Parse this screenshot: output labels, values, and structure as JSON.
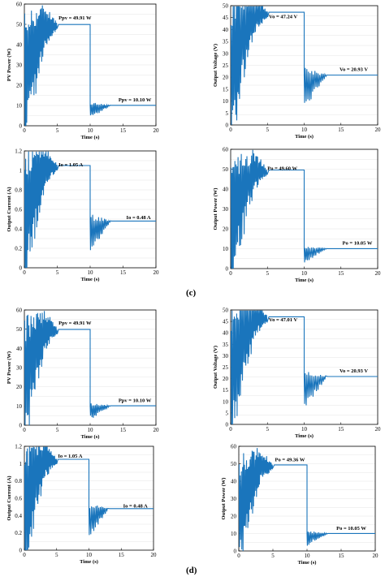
{
  "panel_labels": {
    "c": "(c)",
    "d": "(d)"
  },
  "chart_data": [
    {
      "type": "line",
      "group": "c",
      "color": "#1a75bc",
      "xlabel": "Time (s)",
      "ylabel": "PV Power (W)",
      "xlim": [
        0,
        20
      ],
      "ylim": [
        0,
        60
      ],
      "xticks": [
        0,
        5,
        10,
        15,
        20
      ],
      "yticks": [
        0,
        10,
        20,
        30,
        40,
        50,
        60
      ],
      "ss1": 49.91,
      "ss2": 10.1,
      "annotations": [
        {
          "text": "Ppv = 49.91 W",
          "x": 5.2,
          "y": 52.5
        },
        {
          "text": "Ppv = 10.10 W",
          "x": 14.3,
          "y": 12
        }
      ]
    },
    {
      "type": "line",
      "group": "c",
      "color": "#1a75bc",
      "xlabel": "Time (s)",
      "ylabel": "Output Voltage (V)",
      "xlim": [
        0,
        20
      ],
      "ylim": [
        0,
        50
      ],
      "xticks": [
        0,
        5,
        10,
        15,
        20
      ],
      "yticks": [
        0,
        5,
        10,
        15,
        20,
        25,
        30,
        35,
        40,
        45,
        50
      ],
      "ss1": 47.24,
      "ss2": 20.93,
      "annotations": [
        {
          "text": "Vo = 47.24 V",
          "x": 5.2,
          "y": 44.8
        },
        {
          "text": "Vo = 20.93 V",
          "x": 14.8,
          "y": 22.7
        }
      ]
    },
    {
      "type": "line",
      "group": "c",
      "color": "#1a75bc",
      "xlabel": "Time (s)",
      "ylabel": "Output Current (A)",
      "xlim": [
        0,
        20
      ],
      "ylim": [
        0,
        1.2
      ],
      "xticks": [
        0,
        5,
        10,
        15,
        20
      ],
      "yticks": [
        "0",
        "0.2",
        "0.4",
        "0.6",
        "0.8",
        "1",
        "1.2"
      ],
      "ss1": 1.05,
      "ss2": 0.48,
      "annotations": [
        {
          "text": "Io = 1.05 A",
          "x": 5.2,
          "y": 1.04
        },
        {
          "text": "Io = 0.48 A",
          "x": 15.5,
          "y": 0.5
        }
      ]
    },
    {
      "type": "line",
      "group": "c",
      "color": "#1a75bc",
      "xlabel": "Time (s)",
      "ylabel": "Output Power (W)",
      "xlim": [
        0,
        20
      ],
      "ylim": [
        0,
        60
      ],
      "xticks": [
        0,
        5,
        10,
        15,
        20
      ],
      "yticks": [
        0,
        10,
        20,
        30,
        40,
        50,
        60
      ],
      "ss1": 49.6,
      "ss2": 10.05,
      "annotations": [
        {
          "text": "Po = 49.60 W",
          "x": 5.0,
          "y": 49.5
        },
        {
          "text": "Po = 10.05 W",
          "x": 15.2,
          "y": 12
        }
      ]
    },
    {
      "type": "line",
      "group": "d",
      "color": "#1a75bc",
      "xlabel": "Time (s)",
      "ylabel": "PV Power (W)",
      "xlim": [
        0,
        20
      ],
      "ylim": [
        0,
        60
      ],
      "xticks": [
        0,
        5,
        10,
        15,
        20
      ],
      "yticks": [
        0,
        10,
        20,
        30,
        40,
        50,
        60
      ],
      "ss1": 49.91,
      "ss2": 10.1,
      "annotations": [
        {
          "text": "Ppv = 49.91 W",
          "x": 5.2,
          "y": 52.5
        },
        {
          "text": "Ppv = 10.10 W",
          "x": 14.3,
          "y": 12
        }
      ]
    },
    {
      "type": "line",
      "group": "d",
      "color": "#1a75bc",
      "xlabel": "Time (s)",
      "ylabel": "Output Voltage (V)",
      "xlim": [
        0,
        20
      ],
      "ylim": [
        0,
        50
      ],
      "xticks": [
        0,
        5,
        10,
        15,
        20
      ],
      "yticks": [
        0,
        5,
        10,
        15,
        20,
        25,
        30,
        35,
        40,
        45,
        50
      ],
      "ss1": 47.01,
      "ss2": 20.93,
      "annotations": [
        {
          "text": "Vo = 47.01 V",
          "x": 5.2,
          "y": 45.0
        },
        {
          "text": "Vo = 20.93 V",
          "x": 14.8,
          "y": 22.7
        }
      ]
    },
    {
      "type": "line",
      "group": "d",
      "color": "#1a75bc",
      "xlabel": "Time (s)",
      "ylabel": "Output Current (A)",
      "xlim": [
        0,
        20
      ],
      "ylim": [
        0,
        1.2
      ],
      "xticks": [
        0,
        5,
        10,
        15,
        20
      ],
      "yticks": [
        "0",
        "0.2",
        "0.4",
        "0.6",
        "0.8",
        "1",
        "1.2"
      ],
      "ss1": 1.05,
      "ss2": 0.48,
      "annotations": [
        {
          "text": "Io = 1.05 A",
          "x": 5.2,
          "y": 1.07
        },
        {
          "text": "Io = 0.48 A",
          "x": 15.3,
          "y": 0.49
        }
      ]
    },
    {
      "type": "line",
      "group": "d",
      "color": "#1a75bc",
      "xlabel": "Time (s)",
      "ylabel": "Output Power (W)",
      "xlim": [
        0,
        20
      ],
      "ylim": [
        0,
        60
      ],
      "xticks": [
        0,
        5,
        10,
        15,
        20
      ],
      "yticks": [
        0,
        10,
        20,
        30,
        40,
        50,
        60
      ],
      "ss1": 49.36,
      "ss2": 10.05,
      "annotations": [
        {
          "text": "Po = 49.36 W",
          "x": 5.3,
          "y": 51.5
        },
        {
          "text": "Po = 10.05 W",
          "x": 14.3,
          "y": 12
        }
      ]
    }
  ]
}
